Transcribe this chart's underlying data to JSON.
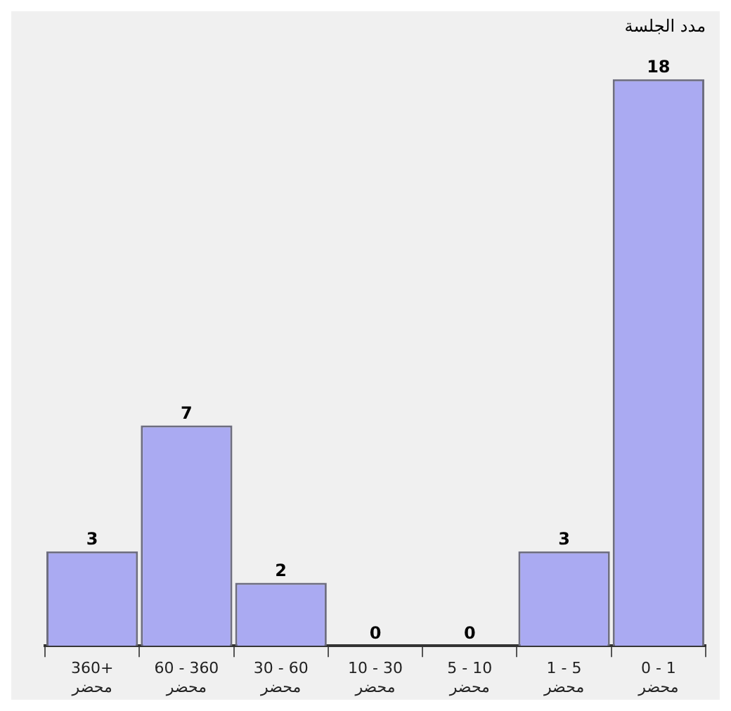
{
  "chart_data": {
    "type": "bar",
    "title": "مدد الجلسة",
    "categories": [
      "360+\nمحضر",
      "60 - 360\nمحضر",
      "30 - 60\nمحضر",
      "10 - 30\nمحضر",
      "5 - 10\nمحضر",
      "1 - 5\nمحضر",
      "0 - 1\nمحضر"
    ],
    "values": [
      3,
      7,
      2,
      0,
      0,
      3,
      18
    ],
    "color": "#aaaaf2",
    "data_labels": true,
    "grid": false,
    "legend": false,
    "tick_labels": "x"
  }
}
